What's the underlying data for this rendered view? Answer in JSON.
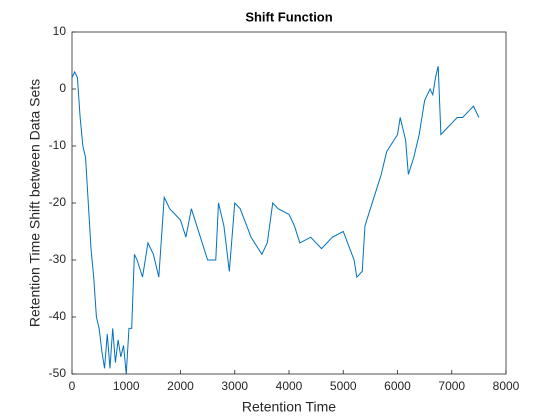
{
  "chart_data": {
    "type": "line",
    "title": "Shift Function",
    "xlabel": "Retention Time",
    "ylabel": "Retention Time Shift between Data Sets",
    "x": [
      0,
      50,
      100,
      150,
      200,
      250,
      300,
      350,
      400,
      450,
      500,
      550,
      600,
      650,
      700,
      750,
      800,
      850,
      900,
      950,
      1000,
      1050,
      1100,
      1150,
      1200,
      1300,
      1400,
      1500,
      1600,
      1700,
      1800,
      1900,
      2000,
      2100,
      2200,
      2300,
      2500,
      2650,
      2700,
      2800,
      2900,
      3000,
      3100,
      3300,
      3500,
      3600,
      3700,
      3800,
      4000,
      4100,
      4200,
      4400,
      4600,
      4800,
      5000,
      5200,
      5250,
      5350,
      5400,
      5500,
      5700,
      5800,
      6000,
      6050,
      6150,
      6200,
      6300,
      6400,
      6500,
      6600,
      6650,
      6700,
      6750,
      6800,
      6900,
      7000,
      7100,
      7200,
      7300,
      7400,
      7500
    ],
    "series": [
      {
        "name": "shift",
        "color": "#0072bd",
        "values": [
          2,
          3,
          2,
          -5,
          -10,
          -12,
          -20,
          -28,
          -33,
          -40,
          -42,
          -46,
          -49,
          -43,
          -49,
          -42,
          -48,
          -44,
          -47,
          -45,
          -50,
          -42,
          -42,
          -29,
          -30,
          -33,
          -27,
          -29,
          -33,
          -19,
          -21,
          -22,
          -23,
          -26,
          -21,
          -24,
          -30,
          -30,
          -20,
          -24,
          -32,
          -20,
          -21,
          -26,
          -29,
          -27,
          -20,
          -21,
          -22,
          -24,
          -27,
          -26,
          -28,
          -26,
          -25,
          -30,
          -33,
          -32,
          -24,
          -21,
          -15,
          -11,
          -8,
          -5,
          -9,
          -15,
          -12,
          -8,
          -2,
          0,
          -1,
          2,
          4,
          -8,
          -7,
          -6,
          -5,
          -5,
          -4,
          -3,
          -5
        ]
      }
    ],
    "xlim": [
      0,
      8000
    ],
    "xticks": [
      0,
      1000,
      2000,
      3000,
      4000,
      5000,
      6000,
      7000,
      8000
    ],
    "ylim": [
      -50,
      10
    ],
    "yticks": [
      -50,
      -40,
      -30,
      -20,
      -10,
      0,
      10
    ]
  }
}
